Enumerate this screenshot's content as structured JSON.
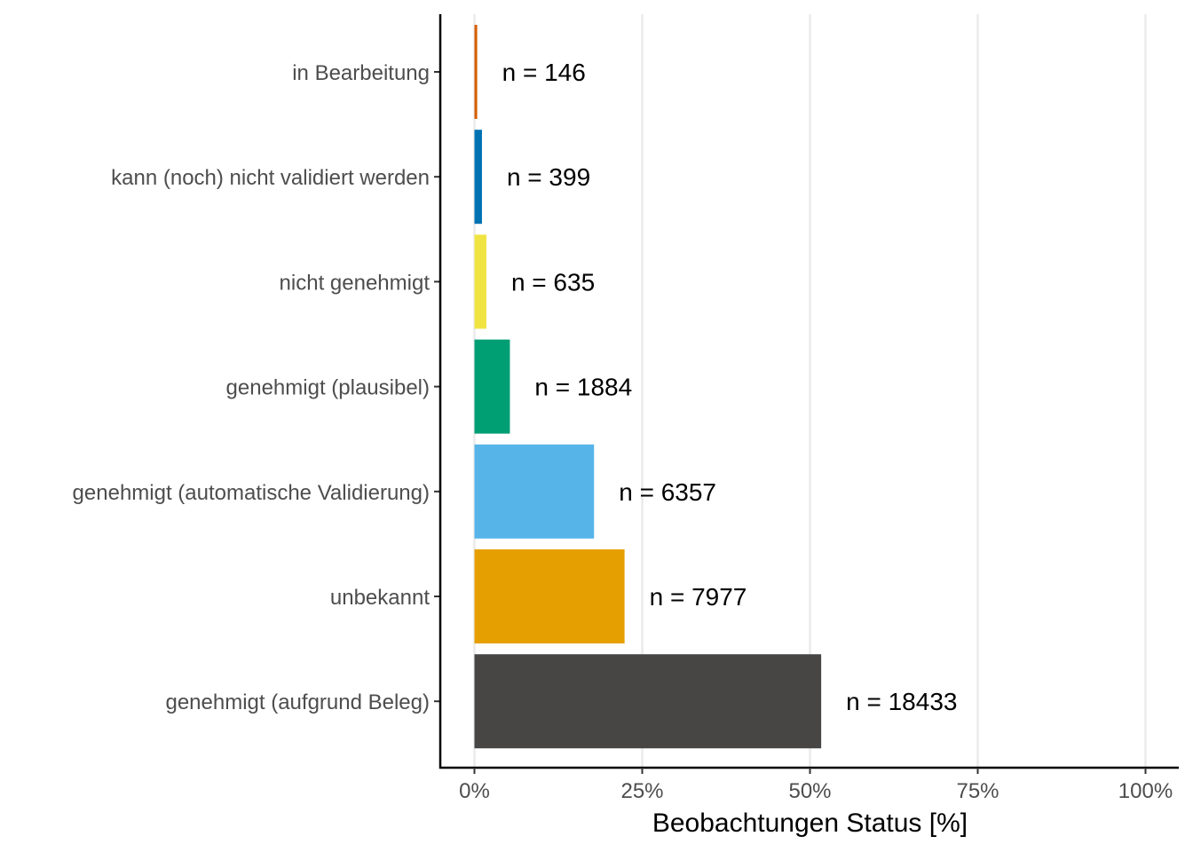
{
  "chart_data": {
    "type": "bar",
    "orientation": "horizontal",
    "categories": [
      "in Bearbeitung",
      "kann (noch) nicht validiert werden",
      "nicht genehmigt",
      "genehmigt (plausibel)",
      "genehmigt (automatische Validierung)",
      "unbekannt",
      "genehmigt (aufgrund Beleg)"
    ],
    "values": [
      0.41,
      1.12,
      1.78,
      5.28,
      17.82,
      22.37,
      51.67
    ],
    "data_labels": [
      "n = 146",
      "n = 399",
      "n = 635",
      "n = 1884",
      "n = 6357",
      "n = 7977",
      "n = 18433"
    ],
    "colors": [
      "#D55E00",
      "#0072B2",
      "#F0E442",
      "#009E73",
      "#56B4E9",
      "#E69F00",
      "#474645"
    ],
    "xlabel": "Beobachtungen Status [%]",
    "ylabel": "",
    "xlim": [
      0,
      100
    ],
    "xticks": [
      0,
      25,
      50,
      75,
      100
    ],
    "xtick_labels": [
      "0%",
      "25%",
      "50%",
      "75%",
      "100%"
    ],
    "grid": "vertical major gridlines",
    "legend": "none"
  }
}
